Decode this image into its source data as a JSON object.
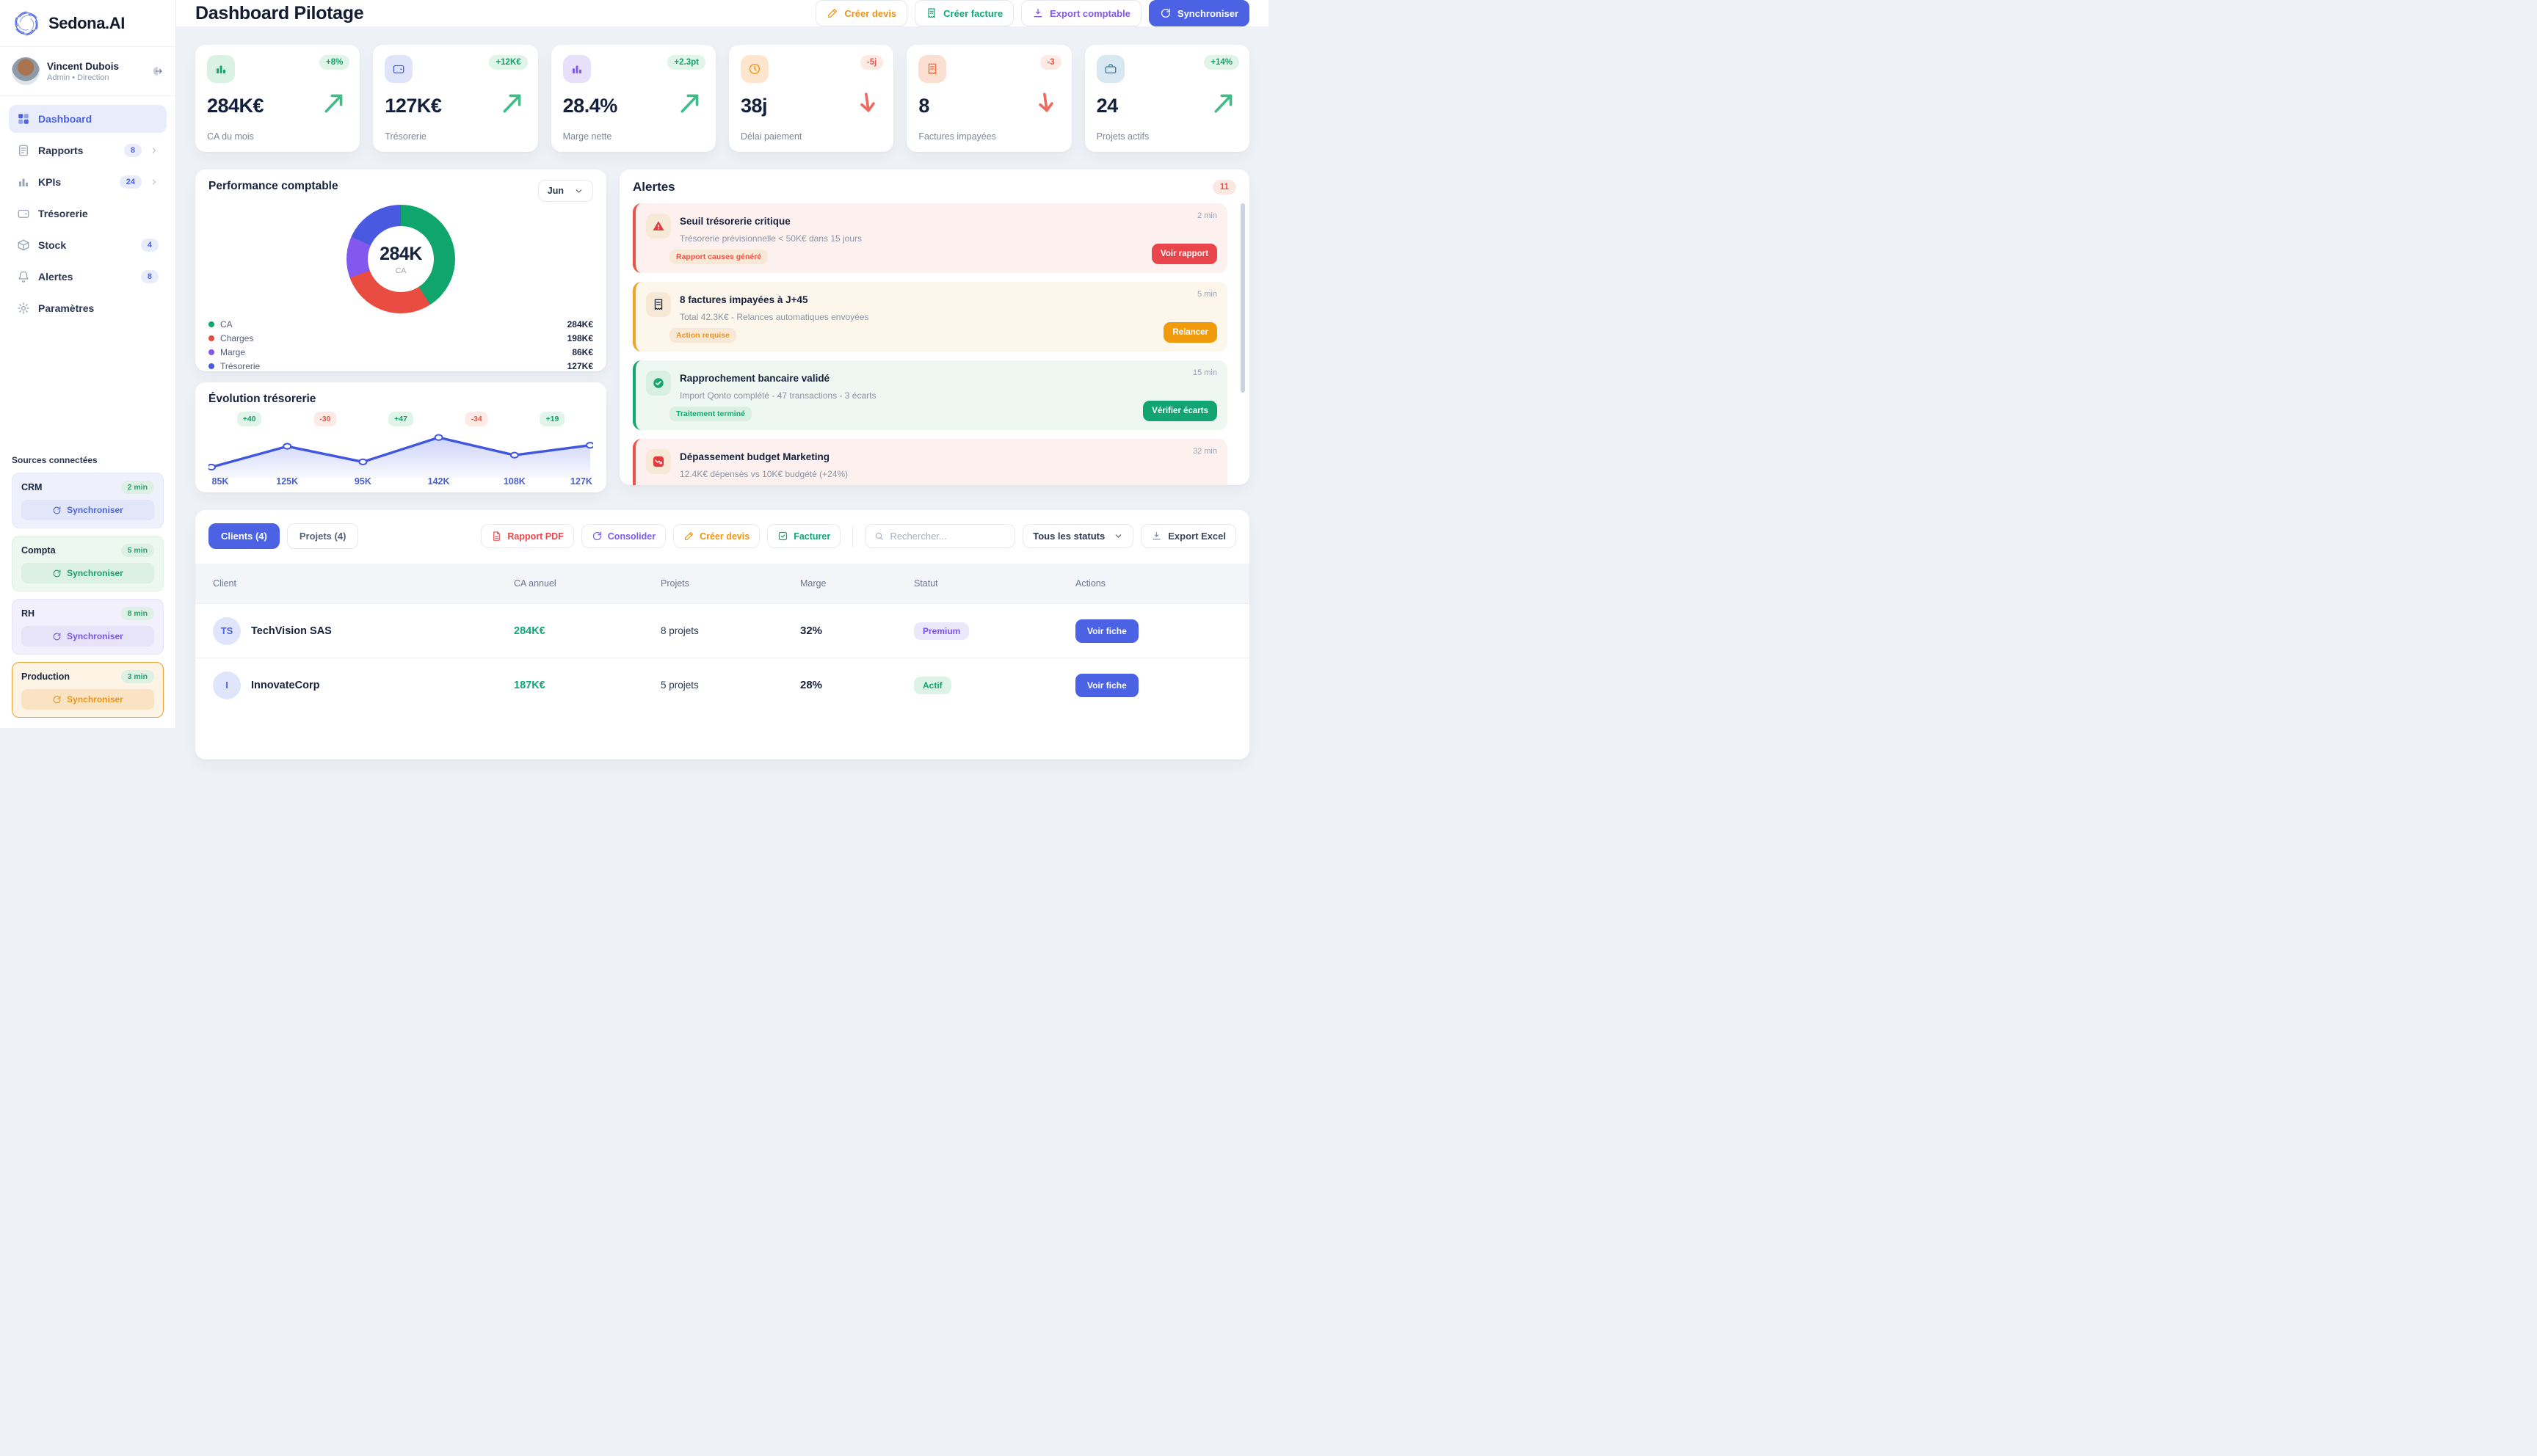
{
  "brand": "Sedona.AI",
  "user": {
    "name": "Vincent Dubois",
    "role": "Admin • Direction"
  },
  "sidebar": {
    "items": [
      {
        "label": "Dashboard",
        "icon": "grid",
        "active": true
      },
      {
        "label": "Rapports",
        "icon": "doc",
        "badge": "8",
        "chevron": true
      },
      {
        "label": "KPIs",
        "icon": "bars",
        "badge": "24",
        "chevron": true
      },
      {
        "label": "Trésorerie",
        "icon": "wallet"
      },
      {
        "label": "Stock",
        "icon": "box",
        "badge": "4"
      },
      {
        "label": "Alertes",
        "icon": "bell",
        "badge": "8"
      },
      {
        "label": "Paramètres",
        "icon": "gear"
      }
    ],
    "sources_title": "Sources connectées",
    "sources": [
      {
        "name": "CRM",
        "time": "2 min",
        "action": "Synchroniser",
        "theme": "indigo"
      },
      {
        "name": "Compta",
        "time": "5 min",
        "action": "Synchroniser",
        "theme": "green"
      },
      {
        "name": "RH",
        "time": "8 min",
        "action": "Synchroniser",
        "theme": "purple"
      },
      {
        "name": "Production",
        "time": "3 min",
        "action": "Synchroniser",
        "theme": "orange"
      }
    ]
  },
  "header": {
    "title": "Dashboard Pilotage",
    "actions": [
      {
        "label": "Créer devis",
        "icon": "pencil",
        "theme": "orange"
      },
      {
        "label": "Créer facture",
        "icon": "receipt",
        "theme": "green"
      },
      {
        "label": "Export comptable",
        "icon": "download",
        "theme": "purple"
      },
      {
        "label": "Synchroniser",
        "icon": "refresh",
        "theme": "primary"
      }
    ]
  },
  "kpis": [
    {
      "value": "284K€",
      "label": "CA du mois",
      "badge": "+8%",
      "trend": "up",
      "icon": "bars",
      "tint": "green"
    },
    {
      "value": "127K€",
      "label": "Trésorerie",
      "badge": "+12K€",
      "trend": "up",
      "icon": "wallet",
      "tint": "indigo"
    },
    {
      "value": "28.4%",
      "label": "Marge nette",
      "badge": "+2.3pt",
      "trend": "up",
      "icon": "bars",
      "tint": "purple"
    },
    {
      "value": "38j",
      "label": "Délai paiement",
      "badge": "-5j",
      "trend": "down",
      "icon": "clock",
      "tint": "orange"
    },
    {
      "value": "8",
      "label": "Factures impayées",
      "badge": "-3",
      "trend": "down",
      "icon": "receipt",
      "tint": "red"
    },
    {
      "value": "24",
      "label": "Projets actifs",
      "badge": "+14%",
      "trend": "up",
      "icon": "briefcase",
      "tint": "teal"
    }
  ],
  "performance": {
    "title": "Performance comptable",
    "period": "Jun",
    "center_value": "284K",
    "center_label": "CA",
    "chart_data": {
      "type": "pie",
      "labels": [
        "CA",
        "Charges",
        "Marge",
        "Trésorerie"
      ],
      "values": [
        284,
        198,
        86,
        127
      ],
      "display_values": [
        "284K€",
        "198K€",
        "86K€",
        "127K€"
      ],
      "colors": [
        "#10a56d",
        "#e94c40",
        "#8358ee",
        "#4a5ae0"
      ]
    }
  },
  "evolution": {
    "title": "Évolution trésorerie",
    "chart_data": {
      "type": "area",
      "x_labels": [
        "85K",
        "125K",
        "95K",
        "142K",
        "108K",
        "127K"
      ],
      "values": [
        85,
        125,
        95,
        142,
        108,
        127
      ],
      "deltas": [
        {
          "label": "+40",
          "dir": "up"
        },
        {
          "label": "-30",
          "dir": "down"
        },
        {
          "label": "+47",
          "dir": "up"
        },
        {
          "label": "-34",
          "dir": "down"
        },
        {
          "label": "+19",
          "dir": "up"
        }
      ],
      "line_color": "#4156de",
      "ylim": [
        80,
        145
      ]
    }
  },
  "alerts": {
    "title": "Alertes",
    "count": "11",
    "items": [
      {
        "severity": "critical",
        "icon": "warning",
        "title": "Seuil trésorerie critique",
        "time": "2 min",
        "desc": "Trésorerie prévisionnelle < 50K€ dans 15 jours",
        "tag": "Rapport causes généré",
        "action": "Voir rapport"
      },
      {
        "severity": "warning",
        "icon": "receipt",
        "title": "8 factures impayées à J+45",
        "time": "5 min",
        "desc": "Total 42.3K€ - Relances automatiques envoyées",
        "tag": "Action requise",
        "action": "Relancer"
      },
      {
        "severity": "success",
        "icon": "check",
        "title": "Rapprochement bancaire validé",
        "time": "15 min",
        "desc": "Import Qonto complété - 47 transactions - 3 écarts",
        "tag": "Traitement terminé",
        "action": "Vérifier écarts"
      },
      {
        "severity": "critical",
        "icon": "chart-down",
        "title": "Dépassement budget Marketing",
        "time": "32 min",
        "desc": "12.4K€ dépensés vs 10K€ budgété (+24%)"
      }
    ]
  },
  "clients_panel": {
    "tabs": [
      {
        "label": "Clients (4)",
        "active": true
      },
      {
        "label": "Projets (4)"
      }
    ],
    "buttons": [
      {
        "label": "Rapport PDF",
        "icon": "pdf",
        "theme": "red"
      },
      {
        "label": "Consolider",
        "icon": "refresh",
        "theme": "purple"
      },
      {
        "label": "Créer devis",
        "icon": "pencil",
        "theme": "orange"
      },
      {
        "label": "Facturer",
        "icon": "check-square",
        "theme": "green"
      }
    ],
    "search_placeholder": "Rechercher...",
    "status_filter": "Tous les statuts",
    "export_label": "Export Excel",
    "table": {
      "headers": [
        "Client",
        "CA annuel",
        "Projets",
        "Marge",
        "Statut",
        "Actions"
      ],
      "rows": [
        {
          "initials": "TS",
          "name": "TechVision SAS",
          "ca": "284K€",
          "projects": "8 projets",
          "margin": "32%",
          "status": "Premium",
          "status_theme": "purple",
          "action": "Voir fiche"
        },
        {
          "initials": "I",
          "name": "InnovateCorp",
          "ca": "187K€",
          "projects": "5 projets",
          "margin": "28%",
          "status": "Actif",
          "status_theme": "green",
          "action": "Voir fiche"
        }
      ]
    }
  }
}
